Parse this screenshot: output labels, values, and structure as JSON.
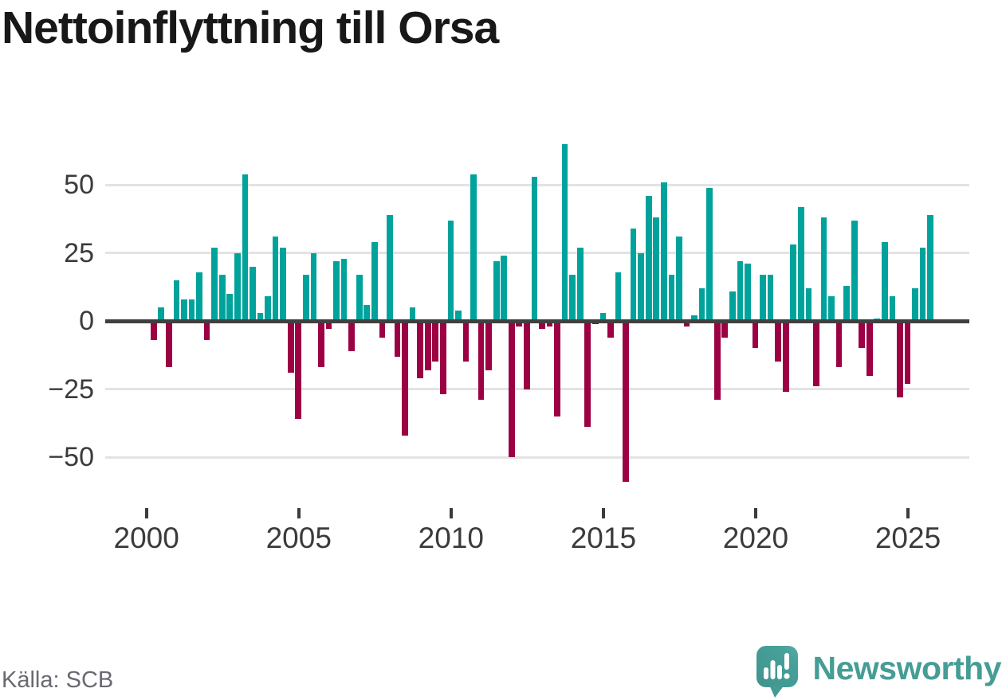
{
  "title": "Nettoinflyttning till Orsa",
  "source": {
    "label": "Källa: SCB"
  },
  "branding": {
    "wordmark": "Newsworthy",
    "logo_icon": "newsworthy-speech-bubble-chart-icon"
  },
  "chart_data": {
    "type": "bar",
    "title": "Nettoinflyttning till Orsa",
    "frequency": "quarterly",
    "start_period": "2000-Q1",
    "end_period": "2025-Q3",
    "values": [
      -7,
      5,
      -17,
      15,
      8,
      8,
      18,
      -7,
      27,
      17,
      10,
      25,
      54,
      20,
      3,
      9,
      31,
      27,
      -19,
      -36,
      17,
      25,
      -17,
      -3,
      22,
      23,
      -11,
      17,
      6,
      29,
      -6,
      39,
      -13,
      -42,
      5,
      -21,
      -18,
      -15,
      -27,
      37,
      4,
      -15,
      54,
      -29,
      -18,
      22,
      24,
      -50,
      -2,
      -25,
      53,
      -3,
      -2,
      -35,
      65,
      17,
      27,
      -39,
      -1,
      3,
      -6,
      18,
      -59,
      34,
      25,
      46,
      38,
      51,
      17,
      31,
      -2,
      2,
      12,
      49,
      -29,
      -6,
      11,
      22,
      21,
      -10,
      17,
      17,
      -15,
      -26,
      28,
      42,
      12,
      -24,
      38,
      9,
      -17,
      13,
      37,
      -10,
      -20,
      1,
      29,
      9,
      -28,
      -23,
      12,
      27,
      39
    ],
    "xticks": [
      "2000",
      "2005",
      "2010",
      "2015",
      "2020",
      "2025"
    ],
    "xtick_years": [
      2000,
      2005,
      2010,
      2015,
      2020,
      2025
    ],
    "yticks": [
      50,
      25,
      0,
      -25,
      -50
    ],
    "ytick_labels": [
      "50",
      "25",
      "0",
      "−25",
      "−50"
    ],
    "ylim": [
      -65,
      70
    ],
    "grid": true,
    "legend": false,
    "xlabel": "",
    "ylabel": "",
    "colors": {
      "positive": "#00a39b",
      "negative": "#9b0143",
      "zero_line": "#404040",
      "gridline": "#e3e3e3",
      "axis_text": "#3b3b3b",
      "title_text": "#181818",
      "source_text": "#696971",
      "brand_teal": "#459d96"
    }
  }
}
